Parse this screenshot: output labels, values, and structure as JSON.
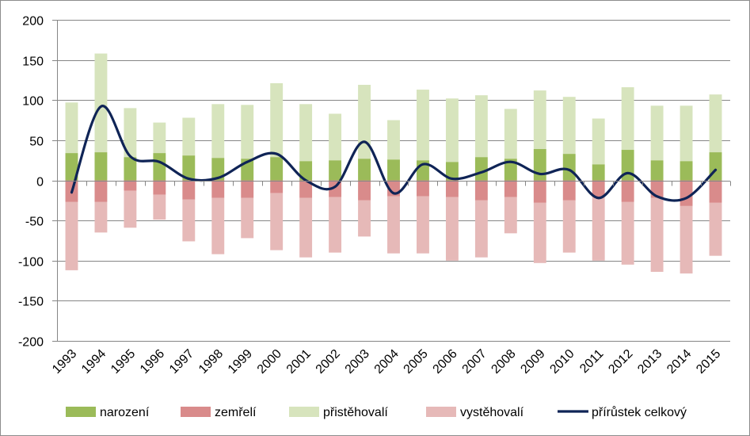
{
  "chart_data": {
    "type": "bar",
    "x": [
      "1993",
      "1994",
      "1995",
      "1996",
      "1997",
      "1998",
      "1999",
      "2000",
      "2001",
      "2002",
      "2003",
      "2004",
      "2005",
      "2006",
      "2007",
      "2008",
      "2009",
      "2010",
      "2011",
      "2012",
      "2013",
      "2014",
      "2015"
    ],
    "ylim": [
      -200,
      200
    ],
    "yticks": [
      -200,
      -150,
      -100,
      -50,
      0,
      50,
      100,
      150,
      200
    ],
    "grid": "horizontal",
    "legend": "bottom",
    "series": [
      {
        "name": "narození",
        "kind": "bar",
        "color": "#9bbb59",
        "values": [
          34,
          35,
          29,
          34,
          31,
          28,
          27,
          29,
          24,
          25,
          27,
          26,
          25,
          23,
          29,
          27,
          39,
          33,
          20,
          38,
          25,
          24,
          35
        ]
      },
      {
        "name": "zemřelí",
        "kind": "bar",
        "color": "#d98b8b",
        "values": [
          -27,
          -27,
          -13,
          -18,
          -24,
          -22,
          -22,
          -16,
          -22,
          -21,
          -25,
          -20,
          -20,
          -21,
          -25,
          -21,
          -28,
          -25,
          -21,
          -27,
          -22,
          -32,
          -28
        ]
      },
      {
        "name": "přistěhovalí",
        "kind": "bar",
        "color": "#d7e4bd",
        "values": [
          63,
          123,
          61,
          38,
          47,
          67,
          67,
          92,
          71,
          58,
          92,
          49,
          88,
          79,
          77,
          62,
          73,
          71,
          57,
          78,
          68,
          69,
          72
        ]
      },
      {
        "name": "vystěhovalí",
        "kind": "bar",
        "color": "#e6b9b8",
        "values": [
          -85,
          -38,
          -46,
          -31,
          -52,
          -70,
          -50,
          -71,
          -74,
          -69,
          -45,
          -71,
          -71,
          -79,
          -71,
          -45,
          -75,
          -65,
          -79,
          -78,
          -92,
          -84,
          -66
        ]
      },
      {
        "name": "přírůstek celkový",
        "kind": "line",
        "color": "#0f2456",
        "values": [
          -15,
          92,
          30,
          23,
          2,
          3,
          23,
          33,
          0,
          -8,
          48,
          -16,
          20,
          2,
          10,
          23,
          8,
          13,
          -22,
          9,
          -20,
          -22,
          13
        ]
      }
    ]
  }
}
